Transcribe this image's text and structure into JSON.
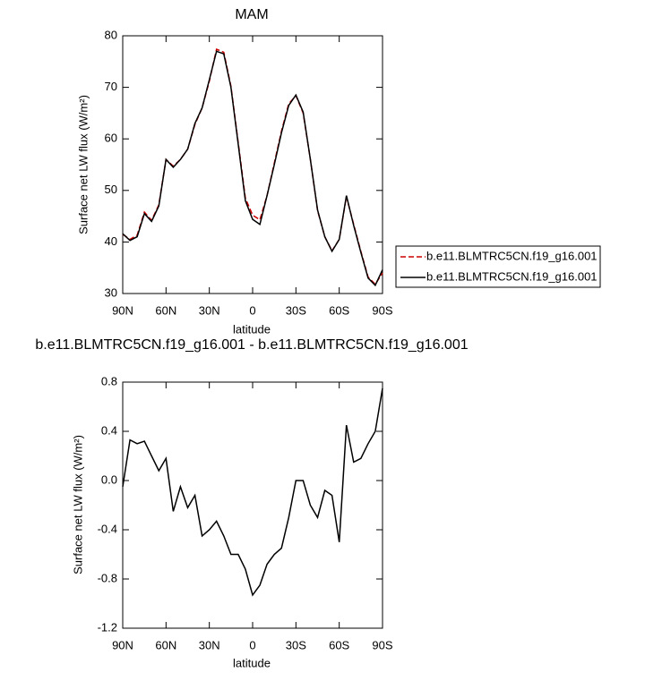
{
  "chart_data": [
    {
      "type": "line",
      "title": "MAM",
      "xlabel": "latitude",
      "ylabel": "Surface net LW flux (W/m²)",
      "x": [
        90,
        85,
        80,
        75,
        70,
        65,
        60,
        55,
        50,
        45,
        40,
        35,
        30,
        25,
        20,
        15,
        10,
        5,
        0,
        -5,
        -10,
        -15,
        -20,
        -25,
        -30,
        -35,
        -40,
        -45,
        -50,
        -55,
        -60,
        -65,
        -70,
        -75,
        -80,
        -85,
        -90
      ],
      "series": [
        {
          "name": "b.e11.BLMTRC5CN.f19_g16.001",
          "color": "#cc0000",
          "dash": "dashed",
          "values": [
            41.5,
            40.5,
            41.3,
            45.8,
            44.2,
            47.2,
            56,
            54.7,
            56,
            58,
            62.8,
            66,
            71.2,
            77.4,
            76.8,
            70.2,
            59.3,
            48.5,
            45.2,
            44.3,
            49,
            55.3,
            61.5,
            66.8,
            68.4,
            65,
            56.1,
            46.1,
            41,
            38.3,
            40.5,
            48.8,
            43.4,
            38.2,
            33.2,
            31.8,
            34
          ]
        },
        {
          "name": "b.e11.BLMTRC5CN.f19_g16.001",
          "color": "#000000",
          "dash": "solid",
          "values": [
            41.6,
            40.3,
            41,
            45.5,
            44,
            47,
            56,
            54.5,
            56,
            58,
            63,
            66,
            71.5,
            77,
            76.5,
            70,
            59,
            48,
            44.4,
            43.4,
            49,
            55,
            61.2,
            66.5,
            68.5,
            65.2,
            56.1,
            46.2,
            41,
            38.2,
            40.5,
            49,
            43.2,
            38,
            33,
            31.6,
            34.6
          ]
        }
      ],
      "xlim": [
        90,
        -90
      ],
      "ylim": [
        30,
        80
      ],
      "xticks": [
        {
          "value": 90,
          "label": "90N"
        },
        {
          "value": 60,
          "label": "60N"
        },
        {
          "value": 30,
          "label": "30N"
        },
        0,
        {
          "value": -30,
          "label": "30S"
        },
        {
          "value": -60,
          "label": "60S"
        },
        {
          "value": -90,
          "label": "90S"
        }
      ],
      "yticks": [
        30,
        40,
        50,
        60,
        70,
        80
      ]
    },
    {
      "type": "line",
      "title": "b.e11.BLMTRC5CN.f19_g16.001 - b.e11.BLMTRC5CN.f19_g16.001",
      "xlabel": "latitude",
      "ylabel": "Surface net LW flux (W/m²)",
      "x": [
        90,
        85,
        80,
        75,
        70,
        65,
        60,
        55,
        50,
        45,
        40,
        35,
        30,
        25,
        20,
        15,
        10,
        5,
        0,
        -5,
        -10,
        -15,
        -20,
        -25,
        -30,
        -35,
        -40,
        -45,
        -50,
        -55,
        -60,
        -65,
        -70,
        -75,
        -80,
        -85,
        -90
      ],
      "values": [
        -0.05,
        0.33,
        0.3,
        0.32,
        0.2,
        0.08,
        0.18,
        -0.25,
        -0.05,
        -0.22,
        -0.12,
        -0.45,
        -0.4,
        -0.33,
        -0.45,
        -0.6,
        -0.6,
        -0.72,
        -0.93,
        -0.85,
        -0.68,
        -0.6,
        -0.55,
        -0.3,
        0.0,
        0.0,
        -0.2,
        -0.3,
        -0.08,
        -0.12,
        -0.5,
        0.45,
        0.15,
        0.18,
        0.3,
        0.4,
        0.75
      ],
      "color": "#000000",
      "xlim": [
        90,
        -90
      ],
      "ylim": [
        -1.2,
        0.8
      ],
      "xticks": [
        {
          "value": 90,
          "label": "90N"
        },
        {
          "value": 60,
          "label": "60N"
        },
        {
          "value": 30,
          "label": "30N"
        },
        0,
        {
          "value": -30,
          "label": "30S"
        },
        {
          "value": -60,
          "label": "60S"
        },
        {
          "value": -90,
          "label": "90S"
        }
      ],
      "yticks": [
        -1.2,
        -0.8,
        -0.4,
        {
          "value": 0,
          "label": "0.0"
        },
        0.4,
        0.8
      ]
    }
  ]
}
